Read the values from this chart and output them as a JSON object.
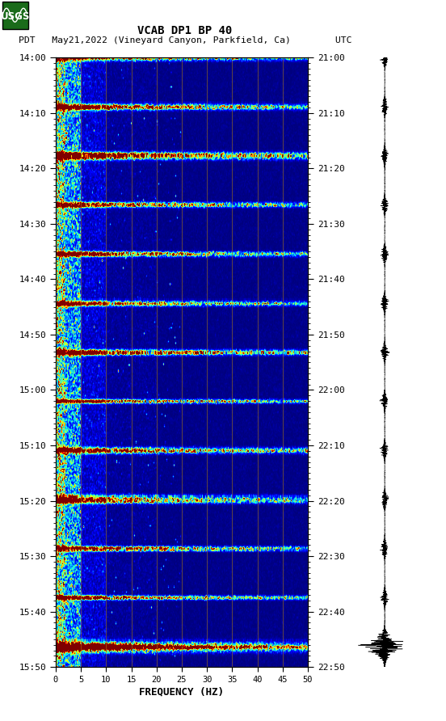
{
  "title_line1": "VCAB DP1 BP 40",
  "title_line2": "PDT   May21,2022 (Vineyard Canyon, Parkfield, Ca)        UTC",
  "xlabel": "FREQUENCY (HZ)",
  "freq_min": 0,
  "freq_max": 50,
  "ytick_pdt": [
    "14:00",
    "14:10",
    "14:20",
    "14:30",
    "14:40",
    "14:50",
    "15:00",
    "15:10",
    "15:20",
    "15:30",
    "15:40",
    "15:50"
  ],
  "ytick_utc": [
    "21:00",
    "21:10",
    "21:20",
    "21:30",
    "21:40",
    "21:50",
    "22:00",
    "22:10",
    "22:20",
    "22:30",
    "22:40",
    "22:50"
  ],
  "xticks": [
    0,
    5,
    10,
    15,
    20,
    25,
    30,
    35,
    40,
    45,
    50
  ],
  "fig_width": 5.52,
  "fig_height": 8.92,
  "dpi": 100,
  "background_color": "#ffffff",
  "spectrogram_cmap": "jet",
  "n_freq": 300,
  "n_time": 720,
  "seed": 42,
  "vertical_lines_freq": [
    5,
    10,
    15,
    20,
    25,
    30,
    35,
    40,
    45
  ],
  "vertical_line_color": "#b8860b",
  "vertical_line_alpha": 0.6,
  "usgs_green": "#1a6b1a",
  "event_rows": [
    0,
    58,
    116,
    174,
    232,
    290,
    348,
    406,
    464,
    522,
    580,
    638,
    696
  ],
  "big_event_row": 696,
  "n_seis": 7000,
  "seis_event_rows": [
    0,
    58,
    116,
    174,
    232,
    290,
    348,
    406,
    464,
    522,
    580,
    638,
    696
  ]
}
